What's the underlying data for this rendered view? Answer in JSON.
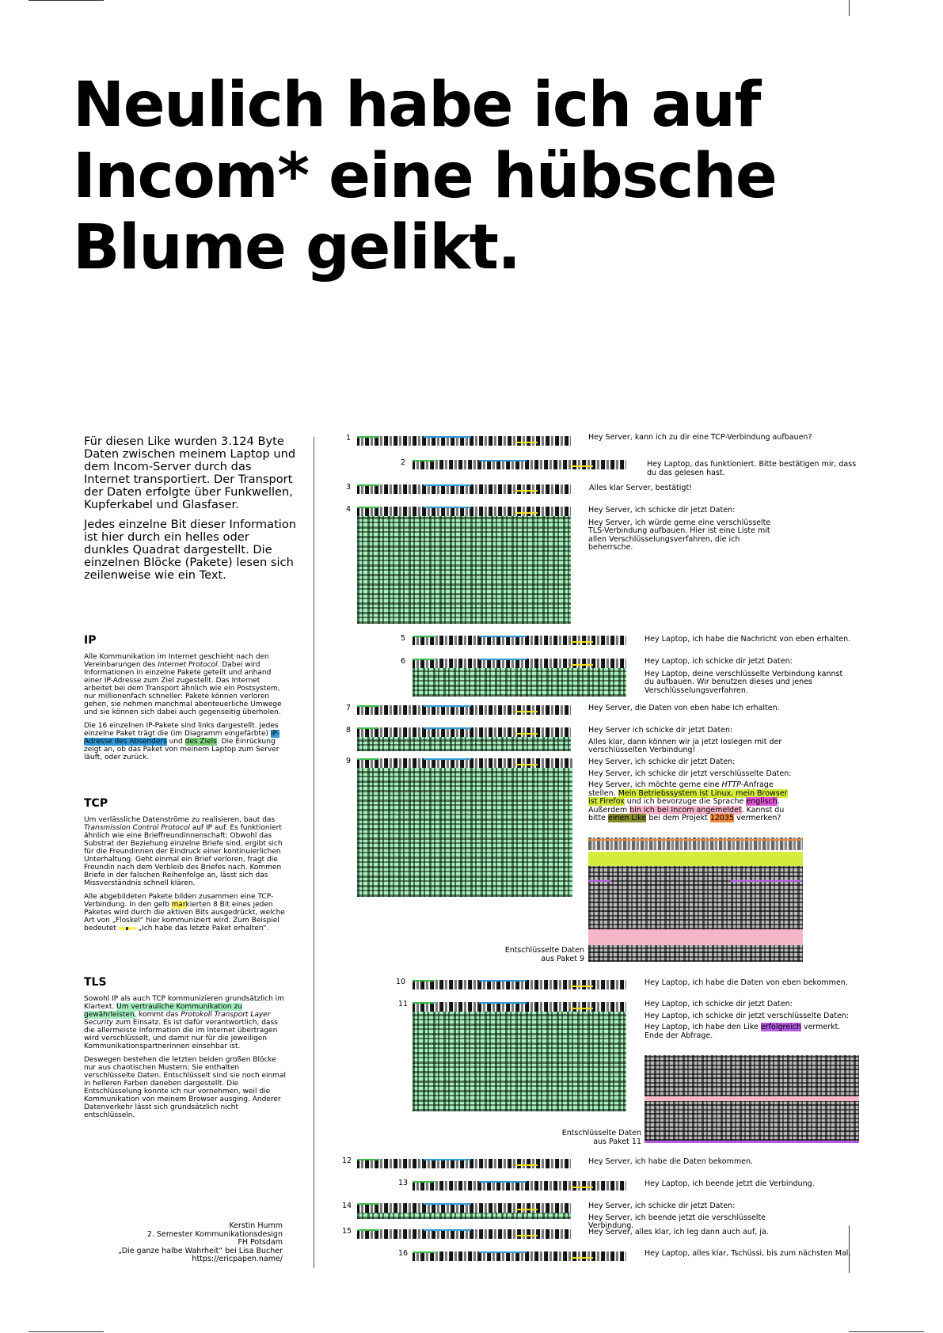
{
  "title": "Neulich habe ich auf Incom* eine hübsche Blume gelikt.",
  "intro": {
    "p1": "Für diesen Like wurden 3.124 Byte Daten zwischen meinem Laptop und dem Incom-Server durch das Internet transportiert. Der Transport der Daten erfolgte über Funkwellen, Kupferkabel und Glasfaser.",
    "p2": "Jedes einzelne Bit dieser Information ist hier durch ein helles oder dunkles Quadrat dargestellt. Die einzelnen Blöcke (Pakete) lesen sich zeilenweise wie ein Text."
  },
  "sections": {
    "ip": {
      "heading": "IP",
      "p1_a": "Alle Kommunikation im Internet geschieht nach den Vereinbarungen des ",
      "p1_em": "Internet Protocol",
      "p1_b": ". Dabei wird Informationen in einzelne Pakete geteilt und anhand einer IP-Adresse zum Ziel zugestellt. Das Internet arbeitet bei dem Transport ähnlich wie ein Postsystem, nur millionenfach schneller: Pakete können verloren gehen, sie nehmen manchmal abenteuerliche Umwege und sie können sich dabei auch gegenseitig überholen.",
      "p2_a": "Die 16 einzelnen IP-Pakete sind links dargestellt. Jedes einzelne Paket trägt die (im Diagramm eingefärbte) ",
      "p2_hl1": "IP-Adresse des Absenders",
      "p2_b": " und ",
      "p2_hl2": "des Ziels",
      "p2_c": ". Die Einrückung zeigt an, ob das Paket von meinem Laptop zum Server läuft, oder zurück."
    },
    "tcp": {
      "heading": "TCP",
      "p1_a": "Um verlässliche Datenströme zu realisieren, baut das ",
      "p1_em": "Transmission Control Protocol",
      "p1_b": " auf IP auf. Es funktioniert ähnlich wie eine Brieffreundinnenschaft: Obwohl das Substrat der Beziehung einzelne Briefe sind, ergibt sich für die Freundinnen der Eindruck einer kontinuierlichen Unterhaltung. Geht einmal ein Brief verloren, fragt die Freundin nach dem Verbleib des Briefes nach. Kommen Briefe in der falschen Reihenfolge an, lässt sich das Missverständnis schnell klären.",
      "p2_a": "Alle abgebildeten Pakete bilden zusammen eine TCP-Verbindung. In den gelb ",
      "p2_hl": "mar",
      "p2_b": "kierten 8 Bit eines jeden Paketes wird durch die aktiven Bits ausgedrückt, welche Art von „Floskel“ hier kommuniziert wird. Zum Beispiel bedeutet ",
      "p2_c": " „Ich habe das letzte Paket erhalten“."
    },
    "tls": {
      "heading": "TLS",
      "p1_a": "Sowohl IP als auch TCP kommunizieren grundsätzlich im Klartext. ",
      "p1_hl": "Um vertrauliche Kommunikation zu gewährleisten",
      "p1_b": ", kommt das ",
      "p1_em": "Protokoll Transport Layer Security",
      "p1_c": " zum Einsatz. Es ist dafür verantwortlich, dass die allermeiste Information die im Internet übertragen wird verschlüsselt, und damit nur für die jeweiligen Kommunikationspartnerinnen einsehbar ist.",
      "p2": "Deswegen bestehen die letzten beiden großen Blöcke nur aus chaotischen Mustern; Sie enthalten verschlüsselte Daten. Entschlüsselt sind sie noch einmal in helleren Farben daneben dargestellt. Die Entschlüsselung konnte ich nur vornehmen, weil die Kommunikation von meinem Browser ausging. Anderer Datenverkehr lässt sich grundsätzlich nicht entschlüsseln."
    }
  },
  "colophon": [
    "Kerstin Humm",
    "2. Semester Kommunikationsdesign",
    "FH Potsdam",
    "„Die ganze halbe Wahrheit“ bei Lisa Bucher",
    "https://ericpapen.name/"
  ],
  "packets": [
    {
      "num": "1",
      "lines": [
        "Hey Server, kann ich zu dir eine TCP-Verbindung aufbauen?"
      ]
    },
    {
      "num": "2",
      "lines": [
        "Hey Laptop, das funktioniert. Bitte bestätigen mir, dass du das gelesen hast."
      ]
    },
    {
      "num": "3",
      "lines": [
        "Alles klar Server, bestätigt!"
      ]
    },
    {
      "num": "4",
      "lines": [
        "Hey Server, ich schicke dir jetzt Daten:",
        "Hey Server, ich würde gerne eine verschlüsselte TLS-Verbindung aufbauen. Hier ist eine Liste mit allen Verschlüsselungsverfahren, die ich beherrsche."
      ]
    },
    {
      "num": "5",
      "lines": [
        "Hey Laptop, ich habe die Nachricht von eben erhalten."
      ]
    },
    {
      "num": "6",
      "lines": [
        "Hey Laptop, ich schicke dir jetzt Daten:",
        "Hey Laptop, deine verschlüsselte Verbindung kannst du aufbauen. Wir benutzen dieses und jenes Verschlüsselungsverfahren."
      ]
    },
    {
      "num": "7",
      "lines": [
        "Hey Server, die Daten von eben habe ich erhalten."
      ]
    },
    {
      "num": "8",
      "lines": [
        "Hey Server ich schicke dir jetzt Daten:",
        "Alles klar, dann können wir ja jetzt loslegen mit der verschlüsselten Verbindung!"
      ]
    },
    {
      "num": "9",
      "lines": [
        "Hey Server, ich schicke dir jetzt Daten:",
        "Hey Server, ich schicke dir jetzt verschlüsselte Daten:"
      ]
    },
    {
      "num": "10",
      "lines": [
        "Hey Laptop, ich habe die Daten von eben bekommen."
      ]
    },
    {
      "num": "11",
      "lines": [
        "Hey Laptop, ich schicke dir jetzt Daten:",
        "Hey Laptop, ich schicke dir jetzt verschlüsselte Daten:"
      ]
    },
    {
      "num": "12",
      "lines": [
        "Hey Server, ich habe die Daten bekommen."
      ]
    },
    {
      "num": "13",
      "lines": [
        "Hey Laptop, ich beende jetzt die Verbindung."
      ]
    },
    {
      "num": "14",
      "lines": [
        "Hey Server, ich schicke dir jetzt Daten:",
        "Hey Server, ich beende jetzt die verschlüsselte Verbindung."
      ]
    },
    {
      "num": "15",
      "lines": [
        "Hey Server, alles klar, ich leg dann auch auf, ja."
      ]
    },
    {
      "num": "16",
      "lines": [
        "Hey Laptop, alles klar, Tschüssi, bis zum nächsten Mal."
      ]
    }
  ],
  "p9_detail": {
    "a": "Hey Server, ich möchte gerne eine ",
    "em": "HTTP",
    "b": "-Anfrage stellen. ",
    "hl1": "Mein Betriebssystem ist Linux, mein Browser ist Firefox",
    "c": " und ich bevorzuge die Sprache ",
    "hl2": "englisch",
    "d": ". Außerdem ",
    "hl3": "bin ich bei Incom angemeldet",
    "e": ". Kannst du bitte ",
    "hl4": "einen Like",
    "f": " bei dem Projekt ",
    "hl5": "12035",
    "g": " vermerken?"
  },
  "p11_detail": {
    "a": "Hey Laptop, ich habe den Like ",
    "hl": "erfolgreich",
    "b": " vermerkt. Ende der Abfrage."
  },
  "captions": {
    "p9": "Entschlüsselte Daten aus Paket 9",
    "p11": "Entschlüsselte Daten aus Paket 11"
  },
  "colors": {
    "ip_source": "#2f9ad8",
    "ip_target": "#7fd67f",
    "tcp_flags": "#fff05a",
    "tls_encrypted": "#a6efc0"
  }
}
